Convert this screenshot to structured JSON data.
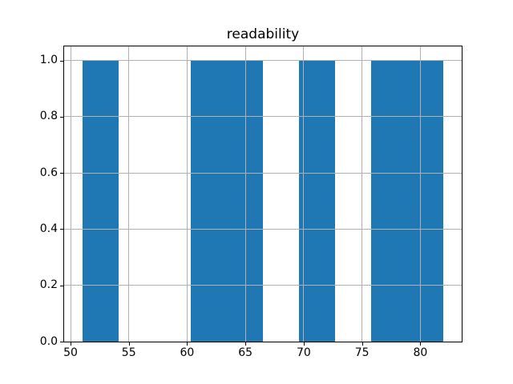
{
  "title": "readability",
  "chart_data": {
    "type": "histogram",
    "title": "readability",
    "xlabel": "",
    "ylabel": "",
    "bin_edges": [
      51.0,
      54.1,
      57.2,
      60.3,
      63.4,
      66.5,
      69.6,
      72.7,
      75.8,
      78.9,
      82.0
    ],
    "counts": [
      1,
      0,
      0,
      1,
      1,
      0,
      1,
      0,
      1,
      1
    ],
    "xlim": [
      49.45,
      83.55
    ],
    "ylim": [
      0,
      1.05
    ],
    "x_ticks": [
      50,
      55,
      60,
      65,
      70,
      75,
      80
    ],
    "x_tick_labels": [
      "50",
      "55",
      "60",
      "65",
      "70",
      "75",
      "80"
    ],
    "y_ticks": [
      0.0,
      0.2,
      0.4,
      0.6,
      0.8,
      1.0
    ],
    "y_tick_labels": [
      "0.0",
      "0.2",
      "0.4",
      "0.6",
      "0.8",
      "1.0"
    ],
    "grid": true,
    "grid_above_bars": true,
    "legend": false,
    "bar_color": "#1f77b4",
    "grid_color": "#b0b0b0",
    "spine_color": "#000000",
    "background_color": "#ffffff"
  }
}
